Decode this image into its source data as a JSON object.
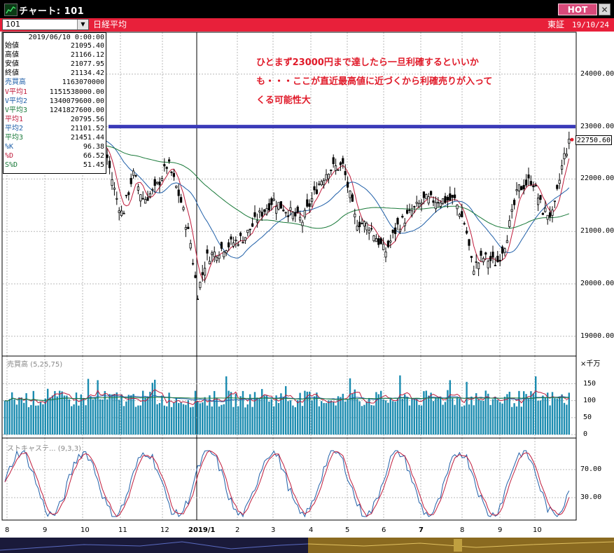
{
  "window": {
    "title": "チャート: 101",
    "hot_label": "HOT",
    "close_label": "✕"
  },
  "toolbar": {
    "symbol": "101",
    "index_name": "日経平均",
    "exchange": "東証",
    "date": "19/10/24"
  },
  "info": {
    "date": "2019/06/10  0:00:00",
    "rows": [
      {
        "label": "始値",
        "value": "21095.40",
        "color": "#000000"
      },
      {
        "label": "高値",
        "value": "21166.12",
        "color": "#000000"
      },
      {
        "label": "安値",
        "value": "21077.95",
        "color": "#000000"
      },
      {
        "label": "終値",
        "value": "21134.42",
        "color": "#000000"
      },
      {
        "label": "売買高",
        "value": "1163070000",
        "color": "#1f5fa8"
      },
      {
        "label": "V平均1",
        "value": "1151538000.00",
        "color": "#c01c3c"
      },
      {
        "label": "V平均2",
        "value": "1340079600.00",
        "color": "#1f5fa8"
      },
      {
        "label": "V平均3",
        "value": "1241827600.00",
        "color": "#1a7a3a"
      },
      {
        "label": "平均1",
        "value": "20795.56",
        "color": "#c01c3c"
      },
      {
        "label": "平均2",
        "value": "21101.52",
        "color": "#1f5fa8"
      },
      {
        "label": "平均3",
        "value": "21451.44",
        "color": "#1a7a3a"
      },
      {
        "label": "%K",
        "value": "96.38",
        "color": "#1f5fa8"
      },
      {
        "label": "%D",
        "value": "66.52",
        "color": "#c01c3c"
      },
      {
        "label": "S%D",
        "value": "51.45",
        "color": "#1a7a3a"
      }
    ]
  },
  "annotation": {
    "lines": [
      "ひとまず23000円まで達したら一旦利確するといいか",
      "も・・・ここが直近最高値に近づくから利確売りが入って",
      "くる可能性大"
    ]
  },
  "price_axis": {
    "labels": [
      "24000.00",
      "23000.00",
      "22000.00",
      "21000.00",
      "20000.00",
      "19000.00"
    ],
    "values": [
      24000,
      23000,
      22000,
      21000,
      20000,
      19000
    ],
    "last_price": "22750.60",
    "last_value": 22750.6,
    "resistance": 23000
  },
  "x_axis": {
    "labels": [
      "8",
      "9",
      "10",
      "11",
      "12",
      "2019/1",
      "2",
      "3",
      "4",
      "5",
      "6",
      "7",
      "8",
      "9",
      "10"
    ]
  },
  "volume": {
    "title": "売買高 (5,25,75)",
    "unit": "×千万",
    "labels": [
      "150",
      "100",
      "50",
      "0"
    ],
    "values": [
      150,
      100,
      50,
      0
    ]
  },
  "stochastics": {
    "title": "ストキャステ... (9,3,3)",
    "labels": [
      "70.00",
      "30.00"
    ],
    "values": [
      70,
      30
    ]
  },
  "colors": {
    "titlebar": "#000000",
    "toolbar": "#e8203a",
    "hot": "#d84a7a",
    "candle": "#000000",
    "ma1": "#c01c3c",
    "ma2": "#1f5fa8",
    "ma3": "#1a7a3a",
    "resistance": "#3a3ab8",
    "volume": "#1b8cb0",
    "annotation": "#e01b2a"
  },
  "chart_data": {
    "type": "line",
    "xlabel": "",
    "ylabel": "",
    "ylim": [
      18800,
      24500
    ],
    "grid": true,
    "x": [
      "8",
      "9",
      "10",
      "11",
      "12",
      "2019/1",
      "2",
      "3",
      "4",
      "5",
      "6",
      "7",
      "8",
      "9",
      "10"
    ],
    "series": [
      {
        "name": "終値",
        "values": [
          22300,
          22700,
          22400,
          21900,
          22400,
          20000,
          20800,
          21500,
          21600,
          22200,
          21100,
          21200,
          21300,
          21600,
          22750
        ]
      }
    ]
  }
}
